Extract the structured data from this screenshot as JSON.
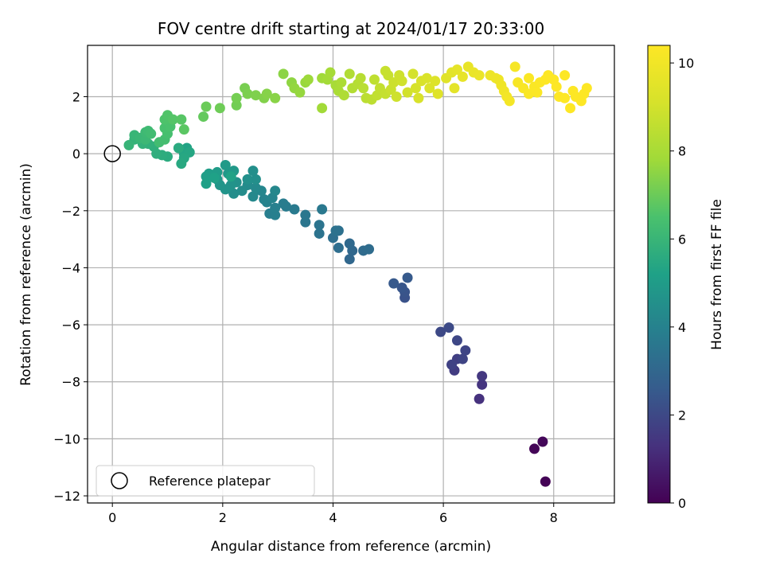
{
  "chart_data": {
    "type": "scatter",
    "title": "FOV centre drift starting at 2024/01/17 20:33:00",
    "xlabel": "Angular distance from reference (arcmin)",
    "ylabel": "Rotation from reference (arcmin)",
    "colorbar_label": "Hours from first FF file",
    "xlim": [
      -0.45,
      9.1
    ],
    "ylim": [
      -12.25,
      3.8
    ],
    "clim": [
      0,
      10.4
    ],
    "xticks": [
      0,
      2,
      4,
      6,
      8
    ],
    "yticks": [
      -12,
      -10,
      -8,
      -6,
      -4,
      -2,
      0,
      2
    ],
    "cticks": [
      0,
      2,
      4,
      6,
      8,
      10
    ],
    "xtick_labels": [
      "0",
      "2",
      "4",
      "6",
      "8"
    ],
    "ytick_labels": [
      "−12",
      "−10",
      "−8",
      "−6",
      "−4",
      "−2",
      "0",
      "2"
    ],
    "ctick_labels": [
      "0",
      "2",
      "4",
      "6",
      "8",
      "10"
    ],
    "grid": true,
    "colormap": "viridis",
    "legend": {
      "placement": "lower-left",
      "label": "Reference platepar"
    },
    "reference_point": {
      "x": 0,
      "y": 0
    },
    "points": [
      [
        7.85,
        -11.5,
        0.05
      ],
      [
        7.65,
        -10.35,
        0.1
      ],
      [
        7.8,
        -10.1,
        0.15
      ],
      [
        6.65,
        -8.6,
        1.3
      ],
      [
        6.7,
        -8.1,
        1.4
      ],
      [
        6.7,
        -7.8,
        1.5
      ],
      [
        6.2,
        -7.6,
        1.6
      ],
      [
        6.25,
        -7.2,
        1.7
      ],
      [
        6.15,
        -7.4,
        1.8
      ],
      [
        6.35,
        -7.2,
        1.85
      ],
      [
        6.4,
        -6.9,
        1.9
      ],
      [
        6.25,
        -6.55,
        1.95
      ],
      [
        5.95,
        -6.25,
        2.0
      ],
      [
        6.1,
        -6.1,
        2.05
      ],
      [
        5.3,
        -5.05,
        2.3
      ],
      [
        5.3,
        -4.85,
        2.35
      ],
      [
        5.25,
        -4.7,
        2.4
      ],
      [
        5.1,
        -4.55,
        2.5
      ],
      [
        5.35,
        -4.35,
        2.55
      ],
      [
        4.3,
        -3.7,
        3.0
      ],
      [
        4.35,
        -3.4,
        3.05
      ],
      [
        4.3,
        -3.15,
        3.1
      ],
      [
        4.55,
        -3.4,
        3.15
      ],
      [
        4.65,
        -3.35,
        3.2
      ],
      [
        4.1,
        -3.3,
        3.25
      ],
      [
        4.0,
        -2.95,
        3.3
      ],
      [
        4.1,
        -2.7,
        3.35
      ],
      [
        4.05,
        -2.7,
        3.4
      ],
      [
        3.75,
        -2.8,
        3.45
      ],
      [
        3.75,
        -2.5,
        3.5
      ],
      [
        3.5,
        -2.4,
        3.55
      ],
      [
        3.5,
        -2.15,
        3.6
      ],
      [
        3.8,
        -1.95,
        3.65
      ],
      [
        3.3,
        -1.95,
        3.7
      ],
      [
        3.15,
        -1.85,
        3.75
      ],
      [
        3.1,
        -1.75,
        3.8
      ],
      [
        2.85,
        -2.1,
        3.85
      ],
      [
        2.95,
        -2.15,
        3.9
      ],
      [
        2.95,
        -1.9,
        3.95
      ],
      [
        2.8,
        -1.7,
        4.0
      ],
      [
        2.75,
        -1.6,
        4.05
      ],
      [
        2.9,
        -1.55,
        4.1
      ],
      [
        2.7,
        -1.3,
        4.15
      ],
      [
        2.95,
        -1.3,
        4.2
      ],
      [
        2.55,
        -1.5,
        4.25
      ],
      [
        2.6,
        -1.2,
        4.3
      ],
      [
        2.45,
        -1.1,
        4.35
      ],
      [
        2.35,
        -1.3,
        4.4
      ],
      [
        2.2,
        -1.4,
        4.45
      ],
      [
        2.6,
        -0.9,
        4.5
      ],
      [
        2.55,
        -0.6,
        4.5
      ],
      [
        2.45,
        -0.9,
        4.55
      ],
      [
        2.25,
        -1.0,
        4.6
      ],
      [
        2.15,
        -1.1,
        4.65
      ],
      [
        2.05,
        -1.25,
        4.7
      ],
      [
        1.95,
        -1.1,
        4.75
      ],
      [
        1.9,
        -0.9,
        4.8
      ],
      [
        2.1,
        -0.7,
        4.85
      ],
      [
        2.2,
        -0.6,
        4.9
      ],
      [
        2.05,
        -0.4,
        4.95
      ],
      [
        1.9,
        -0.65,
        5.0
      ],
      [
        1.75,
        -0.7,
        5.05
      ],
      [
        1.7,
        -0.8,
        5.1
      ],
      [
        1.7,
        -1.05,
        5.15
      ],
      [
        1.85,
        -0.85,
        5.2
      ],
      [
        2.15,
        -0.8,
        5.25
      ],
      [
        1.35,
        0.2,
        5.3
      ],
      [
        1.3,
        0.0,
        5.35
      ],
      [
        1.4,
        0.05,
        5.4
      ],
      [
        1.3,
        -0.15,
        5.45
      ],
      [
        1.25,
        -0.35,
        5.5
      ],
      [
        1.2,
        0.2,
        5.55
      ],
      [
        1.0,
        -0.1,
        5.6
      ],
      [
        0.9,
        -0.05,
        5.65
      ],
      [
        0.8,
        0.0,
        5.7
      ],
      [
        0.75,
        0.25,
        5.75
      ],
      [
        0.65,
        0.35,
        5.8
      ],
      [
        0.55,
        0.35,
        5.85
      ],
      [
        0.4,
        0.5,
        5.9
      ],
      [
        0.3,
        0.3,
        5.95
      ],
      [
        0.4,
        0.65,
        6.0
      ],
      [
        0.5,
        0.55,
        6.05
      ],
      [
        0.6,
        0.5,
        6.1
      ],
      [
        0.6,
        0.75,
        6.15
      ],
      [
        0.65,
        0.8,
        6.2
      ],
      [
        0.7,
        0.7,
        6.25
      ],
      [
        0.85,
        0.4,
        6.3
      ],
      [
        0.95,
        0.5,
        6.35
      ],
      [
        1.0,
        0.7,
        6.4
      ],
      [
        0.95,
        0.9,
        6.45
      ],
      [
        1.05,
        0.95,
        6.5
      ],
      [
        0.95,
        1.2,
        6.55
      ],
      [
        1.0,
        1.35,
        6.6
      ],
      [
        1.1,
        1.2,
        6.65
      ],
      [
        1.25,
        1.2,
        6.7
      ],
      [
        1.3,
        0.85,
        6.75
      ],
      [
        1.65,
        1.3,
        6.9
      ],
      [
        1.7,
        1.65,
        7.0
      ],
      [
        1.95,
        1.6,
        7.05
      ],
      [
        2.25,
        1.7,
        7.1
      ],
      [
        2.25,
        1.95,
        7.15
      ],
      [
        2.4,
        2.3,
        7.2
      ],
      [
        2.45,
        2.1,
        7.25
      ],
      [
        2.6,
        2.05,
        7.3
      ],
      [
        2.75,
        1.95,
        7.35
      ],
      [
        2.8,
        2.1,
        7.4
      ],
      [
        2.95,
        1.95,
        7.45
      ],
      [
        3.1,
        2.8,
        7.5
      ],
      [
        3.25,
        2.5,
        7.55
      ],
      [
        3.3,
        2.3,
        7.6
      ],
      [
        3.4,
        2.15,
        7.65
      ],
      [
        3.5,
        2.5,
        7.7
      ],
      [
        3.55,
        2.6,
        7.75
      ],
      [
        3.8,
        2.65,
        7.8
      ],
      [
        3.8,
        1.6,
        7.85
      ],
      [
        3.9,
        2.6,
        7.9
      ],
      [
        3.95,
        2.85,
        7.95
      ],
      [
        4.05,
        2.4,
        8.0
      ],
      [
        4.1,
        2.2,
        8.05
      ],
      [
        4.15,
        2.5,
        8.1
      ],
      [
        4.2,
        2.05,
        8.15
      ],
      [
        4.3,
        2.8,
        8.2
      ],
      [
        4.35,
        2.3,
        8.25
      ],
      [
        4.45,
        2.45,
        8.3
      ],
      [
        4.5,
        2.65,
        8.35
      ],
      [
        4.55,
        2.3,
        8.4
      ],
      [
        4.6,
        1.95,
        8.45
      ],
      [
        4.7,
        1.9,
        8.5
      ],
      [
        4.75,
        2.6,
        8.55
      ],
      [
        4.8,
        2.05,
        8.6
      ],
      [
        4.85,
        2.3,
        8.65
      ],
      [
        4.95,
        2.1,
        8.7
      ],
      [
        5.0,
        2.75,
        8.75
      ],
      [
        5.05,
        2.25,
        8.8
      ],
      [
        5.1,
        2.5,
        8.85
      ],
      [
        5.15,
        2.0,
        8.9
      ],
      [
        5.25,
        2.55,
        8.95
      ],
      [
        5.35,
        2.15,
        9.0
      ],
      [
        5.45,
        2.8,
        9.05
      ],
      [
        5.5,
        2.3,
        9.1
      ],
      [
        5.55,
        1.95,
        9.15
      ],
      [
        5.6,
        2.55,
        9.2
      ],
      [
        5.7,
        2.65,
        9.25
      ],
      [
        5.75,
        2.3,
        9.3
      ],
      [
        5.85,
        2.55,
        9.35
      ],
      [
        5.9,
        2.1,
        9.4
      ],
      [
        6.05,
        2.65,
        9.45
      ],
      [
        6.15,
        2.85,
        9.5
      ],
      [
        6.2,
        2.3,
        9.55
      ],
      [
        6.25,
        2.95,
        9.6
      ],
      [
        6.35,
        2.7,
        9.65
      ],
      [
        6.45,
        3.05,
        9.7
      ],
      [
        6.55,
        2.85,
        9.75
      ],
      [
        6.65,
        2.75,
        9.8
      ],
      [
        6.85,
        2.75,
        9.85
      ],
      [
        7.0,
        2.6,
        9.9
      ],
      [
        7.05,
        2.4,
        9.95
      ],
      [
        7.1,
        2.2,
        10.0
      ],
      [
        7.15,
        2.0,
        10.05
      ],
      [
        7.2,
        1.85,
        10.1
      ],
      [
        7.3,
        3.05,
        10.15
      ],
      [
        7.35,
        2.5,
        10.2
      ],
      [
        7.45,
        2.3,
        10.25
      ],
      [
        7.55,
        2.1,
        10.3
      ],
      [
        7.65,
        2.35,
        10.3
      ],
      [
        7.7,
        2.15,
        10.35
      ],
      [
        7.75,
        2.5,
        10.35
      ],
      [
        7.85,
        2.6,
        10.4
      ],
      [
        7.9,
        2.75,
        10.4
      ],
      [
        8.0,
        2.6,
        10.4
      ],
      [
        8.05,
        2.35,
        10.4
      ],
      [
        8.1,
        2.0,
        10.4
      ],
      [
        8.2,
        1.95,
        10.4
      ],
      [
        8.3,
        1.6,
        10.4
      ],
      [
        8.35,
        2.2,
        10.4
      ],
      [
        8.4,
        2.0,
        10.4
      ],
      [
        8.5,
        1.85,
        10.4
      ],
      [
        8.55,
        2.1,
        10.4
      ],
      [
        8.6,
        2.3,
        10.4
      ],
      [
        8.2,
        2.75,
        10.4
      ],
      [
        7.55,
        2.65,
        10.3
      ],
      [
        6.95,
        2.65,
        9.9
      ],
      [
        5.2,
        2.75,
        8.9
      ],
      [
        4.95,
        2.9,
        8.75
      ]
    ]
  }
}
